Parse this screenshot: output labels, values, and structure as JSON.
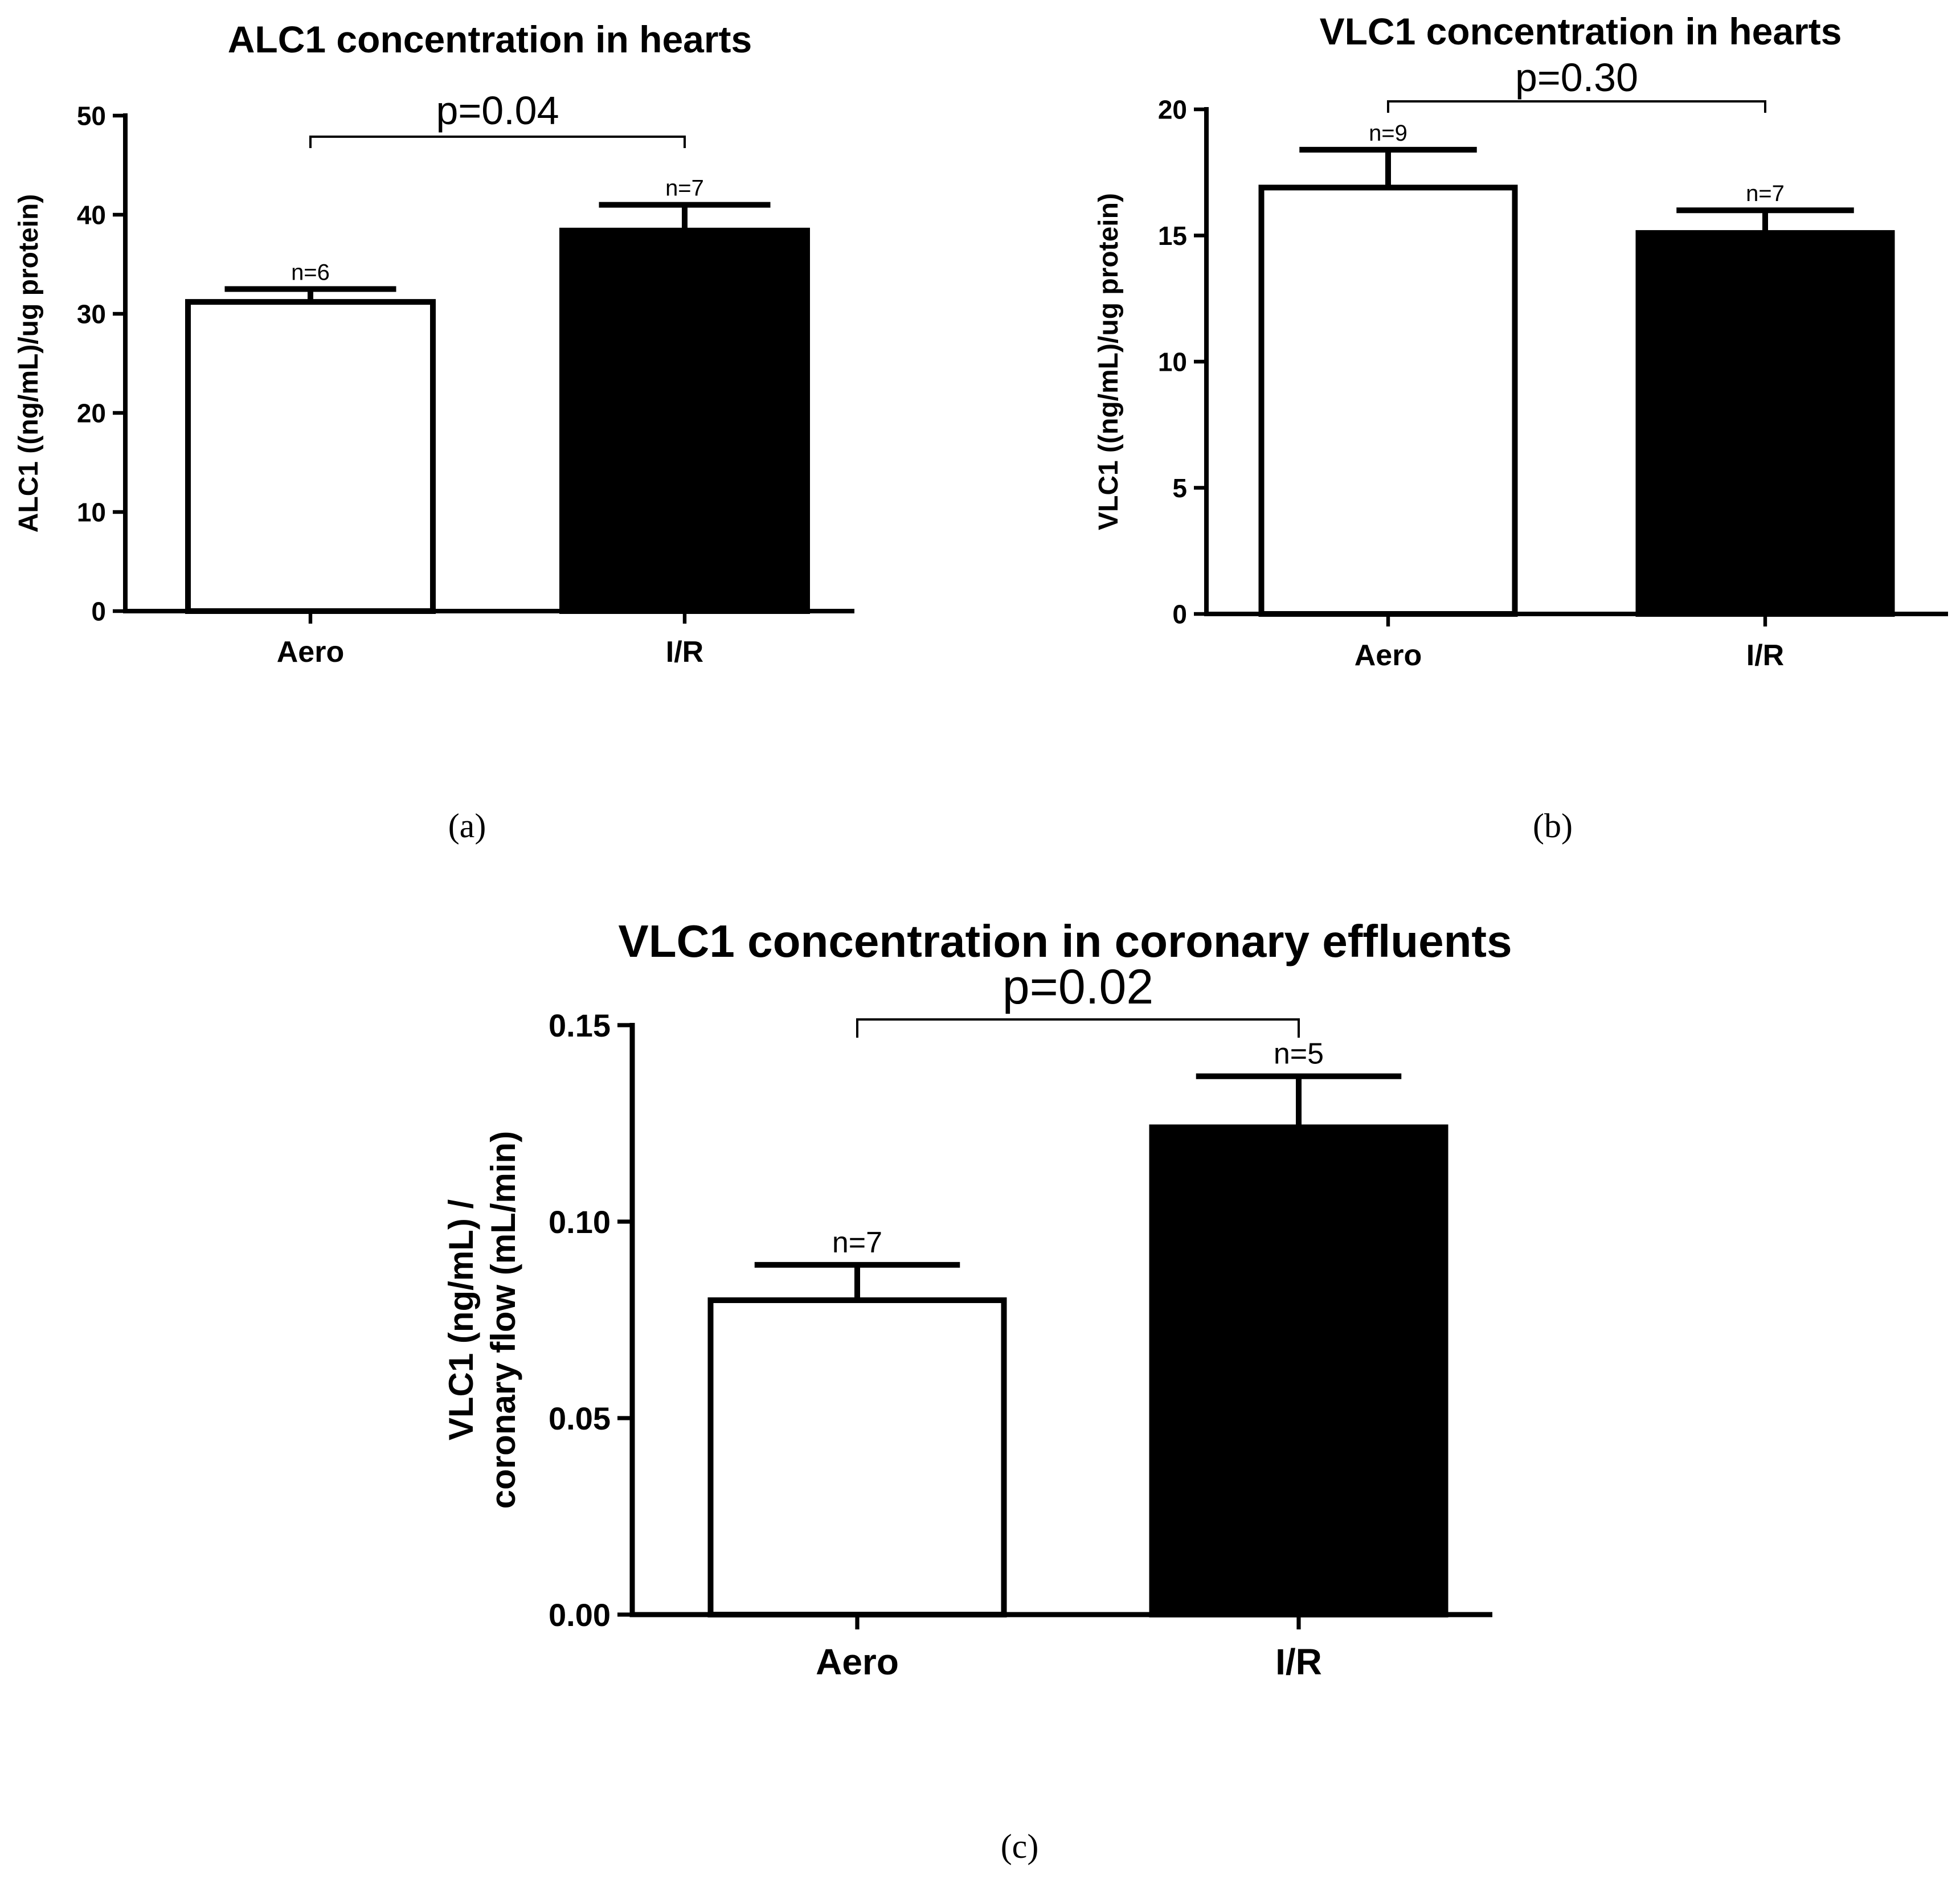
{
  "chart_data": [
    {
      "type": "bar",
      "panel_label": "(a)",
      "title": "ALC1 concentration in hearts",
      "ylabel": [
        "ALC1 ((ng/mL)/ug protein)"
      ],
      "xlabel": "",
      "categories": [
        "Aero",
        "I/R"
      ],
      "values": [
        31.2,
        38.4
      ],
      "errors": [
        1.3,
        2.6
      ],
      "n_labels": [
        "n=6",
        "n=7"
      ],
      "bar_fill": [
        "#ffffff",
        "#000000"
      ],
      "ylim": [
        0,
        50
      ],
      "yticks": [
        0,
        10,
        20,
        30,
        40,
        50
      ],
      "ytick_labels": [
        "0",
        "10",
        "20",
        "30",
        "40",
        "50"
      ],
      "significance": {
        "text": "p=0.04",
        "between": [
          0,
          1
        ]
      }
    },
    {
      "type": "bar",
      "panel_label": "(b)",
      "title": "VLC1 concentration in hearts",
      "ylabel": [
        "VLC1 ((ng/mL)/ug protein)"
      ],
      "xlabel": "",
      "categories": [
        "Aero",
        "I/R"
      ],
      "values": [
        16.9,
        15.1
      ],
      "errors": [
        1.5,
        0.9
      ],
      "n_labels": [
        "n=9",
        "n=7"
      ],
      "bar_fill": [
        "#ffffff",
        "#000000"
      ],
      "ylim": [
        0,
        20
      ],
      "yticks": [
        0,
        5,
        10,
        15,
        20
      ],
      "ytick_labels": [
        "0",
        "5",
        "10",
        "15",
        "20"
      ],
      "significance": {
        "text": "p=0.30",
        "between": [
          0,
          1
        ]
      }
    },
    {
      "type": "bar",
      "panel_label": "(c)",
      "title": "VLC1 concentration in coronary effluents",
      "ylabel": [
        "VLC1 (ng/mL) /",
        "coronary flow (mL/min)"
      ],
      "xlabel": "",
      "categories": [
        "Aero",
        "I/R"
      ],
      "values": [
        0.08,
        0.124
      ],
      "errors": [
        0.009,
        0.013
      ],
      "n_labels": [
        "n=7",
        "n=5"
      ],
      "bar_fill": [
        "#ffffff",
        "#000000"
      ],
      "ylim": [
        0,
        0.15
      ],
      "yticks": [
        0,
        0.05,
        0.1,
        0.15
      ],
      "ytick_labels": [
        "0.00",
        "0.05",
        "0.10",
        "0.15"
      ],
      "significance": {
        "text": "p=0.02",
        "between": [
          0,
          1
        ]
      }
    }
  ]
}
